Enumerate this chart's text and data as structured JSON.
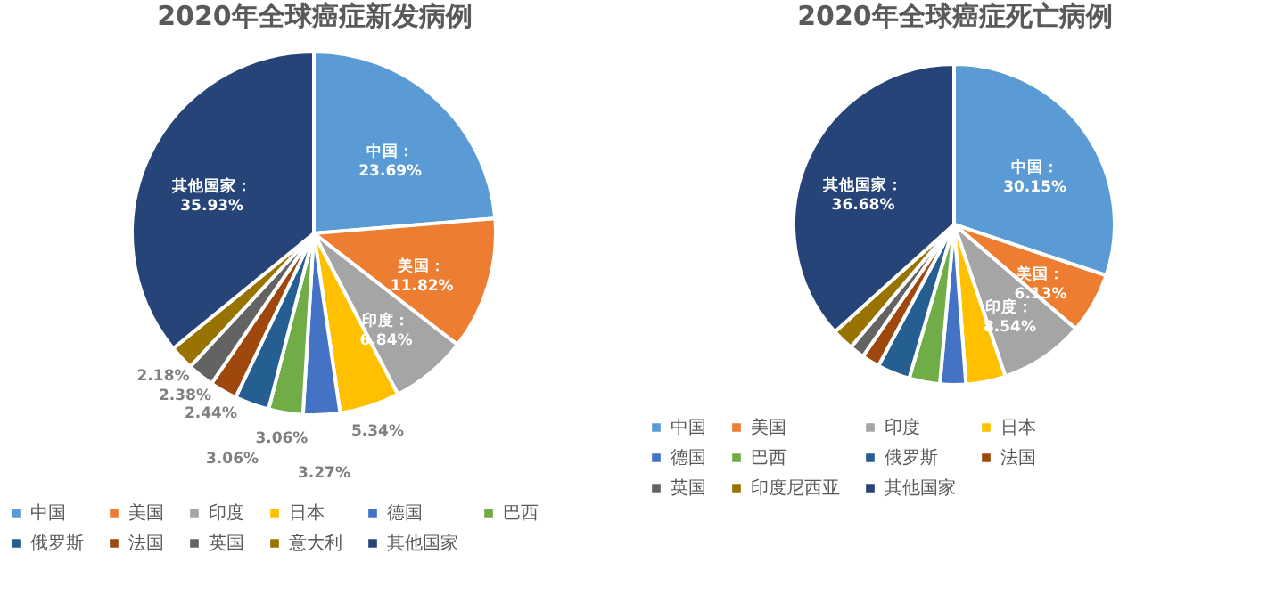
{
  "chart_data": [
    {
      "type": "pie",
      "title": "2020年全球癌症新发病例",
      "legend": "bottom",
      "categories": [
        "中国",
        "美国",
        "印度",
        "日本",
        "德国",
        "巴西",
        "俄罗斯",
        "法国",
        "英国",
        "意大利",
        "其他国家"
      ],
      "values": [
        23.69,
        11.82,
        6.84,
        5.34,
        3.27,
        3.06,
        3.06,
        2.44,
        2.38,
        2.18,
        35.93
      ],
      "colors": [
        "#5b9bd5",
        "#ed7d31",
        "#a5a5a5",
        "#ffc000",
        "#4472c4",
        "#70ad47",
        "#255e91",
        "#9e480e",
        "#636363",
        "#997300",
        "#264478"
      ],
      "value_labels": [
        "中国：23.69%",
        "美国：11.82%",
        "印度：6.84%",
        "5.34%",
        "3.27%",
        "3.06%",
        "3.06%",
        "2.44%",
        "2.38%",
        "2.18%",
        "其他国家：35.93%"
      ]
    },
    {
      "type": "pie",
      "title": "2020年全球癌症死亡病例",
      "legend": "bottom",
      "categories": [
        "中国",
        "美国",
        "印度",
        "日本",
        "德国",
        "巴西",
        "俄罗斯",
        "法国",
        "英国",
        "印度尼西亚",
        "其他国家"
      ],
      "values": [
        30.15,
        6.13,
        8.54,
        4.0,
        2.6,
        3.1,
        3.3,
        1.8,
        1.5,
        2.2,
        36.68
      ],
      "colors": [
        "#5b9bd5",
        "#ed7d31",
        "#a5a5a5",
        "#ffc000",
        "#4472c4",
        "#70ad47",
        "#255e91",
        "#9e480e",
        "#636363",
        "#997300",
        "#264478"
      ],
      "value_labels": [
        "中国：30.15%",
        "美国：6.13%",
        "印度：8.54%",
        null,
        null,
        null,
        null,
        null,
        null,
        null,
        "其他国家：36.68%"
      ]
    }
  ]
}
